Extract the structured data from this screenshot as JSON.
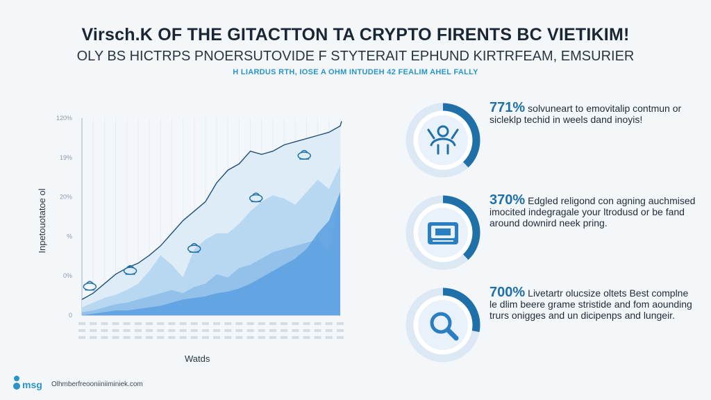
{
  "header": {
    "title": "Virsch.K OF THE GITACTTON TA CRYPTO FIRENTS BC VIETIKIM!",
    "subtitle": "OLY BS HICTRPS PNOERSUTOVIDE F STYTERAIT EPHUND KIRTRFEAM, EMSURIER",
    "tagline": "H LIARDUS RTH, IOSE A OHM INTUDEH 42 FEALIM AHEL FALLY"
  },
  "chart_data": {
    "type": "area",
    "title": "",
    "xlabel": "Watds",
    "ylabel": "Inpetouotatoe ol",
    "yticks": [
      "0",
      "0%",
      "%",
      "20%",
      "19%",
      "120%"
    ],
    "ylim": [
      0,
      125
    ],
    "x": [
      0,
      1,
      2,
      3,
      4,
      5,
      6,
      7,
      8,
      9,
      10,
      11,
      12,
      13,
      14,
      15,
      16,
      17,
      18,
      19,
      20,
      21,
      22,
      23
    ],
    "series": [
      {
        "values": [
          10,
          14,
          20,
          26,
          30,
          33,
          38,
          44,
          52,
          60,
          66,
          72,
          84,
          92,
          96,
          104,
          102,
          104,
          108,
          110,
          112,
          114,
          116,
          120
        ]
      },
      {
        "values": [
          5,
          8,
          11,
          13,
          16,
          20,
          28,
          38,
          32,
          24,
          42,
          48,
          52,
          52,
          58,
          66,
          72,
          76,
          74,
          70,
          78,
          86,
          80,
          95
        ]
      },
      {
        "values": [
          2,
          3,
          5,
          7,
          8,
          10,
          12,
          14,
          16,
          14,
          18,
          20,
          26,
          24,
          30,
          32,
          36,
          40,
          42,
          44,
          46,
          48,
          40,
          78
        ]
      },
      {
        "values": [
          0,
          1,
          2,
          3,
          3,
          4,
          5,
          6,
          8,
          10,
          11,
          12,
          14,
          15,
          17,
          20,
          24,
          28,
          32,
          36,
          42,
          52,
          60,
          78
        ]
      }
    ],
    "markers": [
      {
        "x": 0.7,
        "y": 12,
        "icon": "ufo-icon"
      },
      {
        "x": 4.3,
        "y": 22,
        "icon": "rocket-icon"
      },
      {
        "x": 10,
        "y": 36,
        "icon": "flag-icon"
      },
      {
        "x": 15.5,
        "y": 68,
        "icon": "group-icon"
      },
      {
        "x": 19.8,
        "y": 95,
        "icon": "figure-icon"
      }
    ],
    "grid": true,
    "legend": "none"
  },
  "stats": [
    {
      "icon": "person-icon",
      "percent": "771%",
      "text": "solvuneart to emovitalip contmun or sicleklp techid in weels dand inoyis!",
      "progress": 0.38
    },
    {
      "icon": "chip-icon",
      "percent": "370%",
      "text": "Edgled religond con agning auchmised imocited indegragale your ltrodusd or be fand around downird neek pring.",
      "progress": 0.38
    },
    {
      "icon": "search-icon",
      "percent": "700%",
      "text": "Livetartr olucsize oltets Best complne le dlim beere grame stristide and fom aounding trurs onigges and un dicipenps and lungeir.",
      "progress": 0.28
    }
  ],
  "footer": {
    "logo": "msg",
    "site": "Olhmberfreooniiniiminiek.com"
  },
  "colors": {
    "accent": "#1f6fa8",
    "light_blue": "#2a94c9",
    "area_light": "#dbeaf6",
    "area_mid": "#b2d3ef",
    "area_dark": "#5a9fe0",
    "ring_bg": "#dce8f3"
  }
}
